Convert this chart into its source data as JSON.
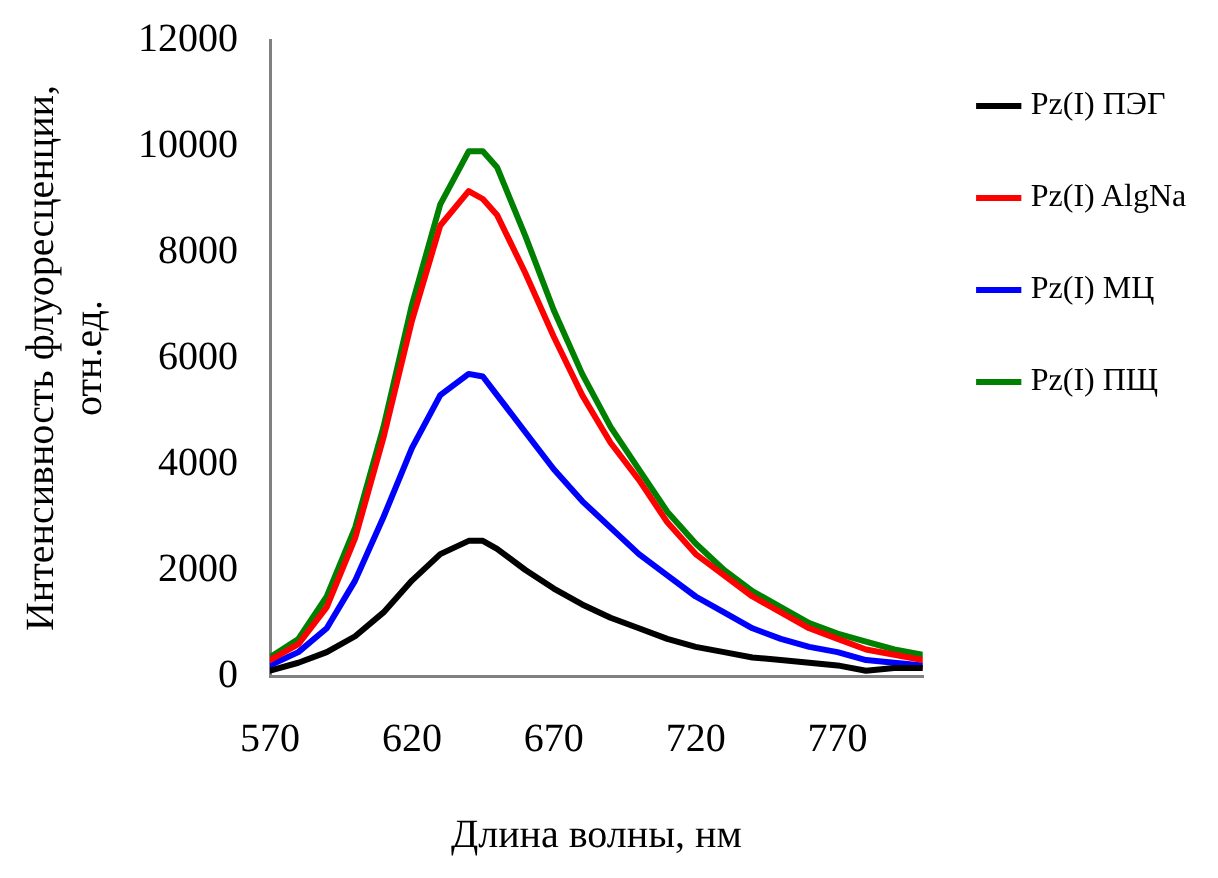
{
  "chart_data": {
    "type": "line",
    "xlabel": "Длина волны, нм",
    "ylabel": "Интенсивность флуоресценции, отн.ед.",
    "x": [
      570,
      580,
      590,
      600,
      610,
      620,
      630,
      640,
      645,
      650,
      660,
      670,
      680,
      690,
      700,
      710,
      720,
      730,
      740,
      750,
      760,
      770,
      780,
      790,
      800
    ],
    "series": [
      {
        "name": "Pz(I) ПЭГ",
        "color": "#000000",
        "values": [
          100,
          250,
          450,
          750,
          1200,
          1800,
          2300,
          2550,
          2550,
          2400,
          2000,
          1650,
          1350,
          1100,
          900,
          700,
          550,
          450,
          350,
          300,
          250,
          200,
          100,
          150,
          150
        ]
      },
      {
        "name": "Pz(I) AlgNa",
        "color": "#ff0000",
        "values": [
          300,
          600,
          1300,
          2600,
          4500,
          6700,
          8500,
          9150,
          9000,
          8700,
          7600,
          6400,
          5300,
          4400,
          3700,
          2900,
          2300,
          1900,
          1500,
          1200,
          900,
          700,
          500,
          400,
          300
        ]
      },
      {
        "name": "Pz(I) МЦ",
        "color": "#0000ff",
        "values": [
          200,
          450,
          900,
          1800,
          3000,
          4300,
          5300,
          5700,
          5650,
          5300,
          4600,
          3900,
          3300,
          2800,
          2300,
          1900,
          1500,
          1200,
          900,
          700,
          550,
          450,
          300,
          250,
          200
        ]
      },
      {
        "name": "Pz(I) ПЩ",
        "color": "#008000",
        "values": [
          350,
          700,
          1500,
          2800,
          4700,
          7000,
          8900,
          9900,
          9900,
          9600,
          8300,
          6900,
          5700,
          4700,
          3900,
          3100,
          2500,
          2000,
          1600,
          1300,
          1000,
          800,
          650,
          500,
          400
        ]
      }
    ],
    "xlim": [
      570,
      800
    ],
    "xticks": [
      570,
      620,
      670,
      720,
      770
    ],
    "ylim": [
      0,
      12000
    ],
    "yticks": [
      0,
      2000,
      4000,
      6000,
      8000,
      10000,
      12000
    ],
    "grid": false,
    "legend": "right",
    "marker": "none",
    "line_style": "solid"
  }
}
